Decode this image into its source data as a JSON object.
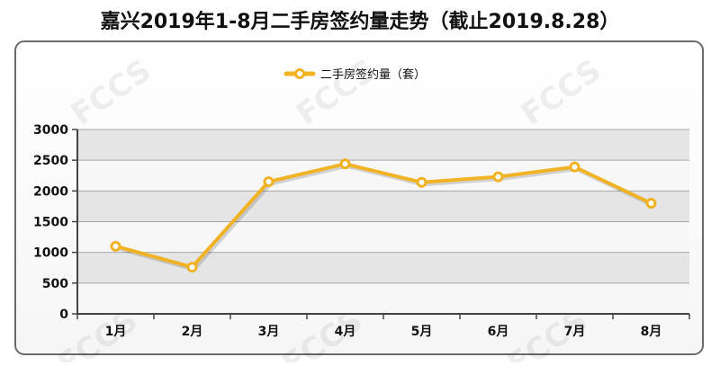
{
  "chart_data": {
    "type": "line",
    "title": "嘉兴2019年1-8月二手房签约量走势（截止2019.8.28）",
    "categories": [
      "1月",
      "2月",
      "3月",
      "4月",
      "5月",
      "6月",
      "7月",
      "8月"
    ],
    "series": [
      {
        "name": "二手房签约量（套）",
        "values": [
          1100,
          760,
          2150,
          2440,
          2140,
          2230,
          2390,
          1800
        ],
        "color": "#f0b325"
      }
    ],
    "yticks": [
      "0",
      "500",
      "1000",
      "1500",
      "2000",
      "2500",
      "3000"
    ],
    "ylim": [
      0,
      3000
    ],
    "grid": true,
    "legend_position": "top-center"
  },
  "watermark_text": "FCCS"
}
